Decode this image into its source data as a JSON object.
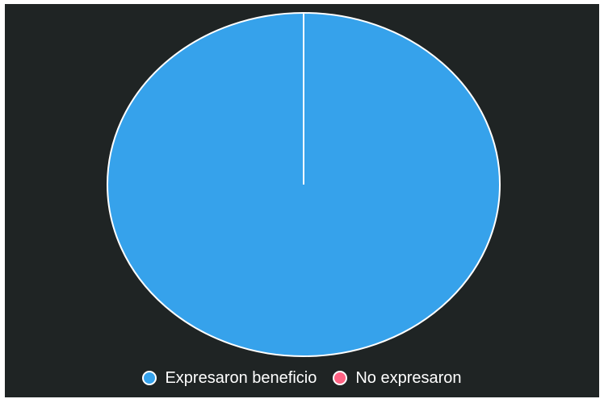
{
  "chart_data": {
    "type": "pie",
    "categories": [
      "Expresaron beneficio",
      "No expresaron"
    ],
    "values": [
      100,
      0
    ],
    "colors": [
      "#36a2eb",
      "#ff6384"
    ],
    "legend_position": "bottom",
    "title": ""
  }
}
